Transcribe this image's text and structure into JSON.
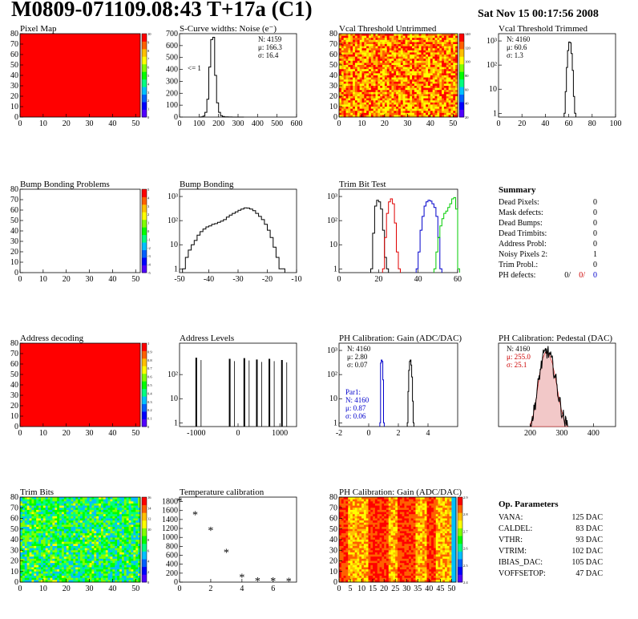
{
  "header": {
    "title": "M0809-071109.08:43 T+17a (C1)",
    "date": "Sat Nov 15 00:17:56 2008"
  },
  "colors": {
    "hist_line": "#000000",
    "trim_red": "#e00000",
    "trim_blue": "#0000cc",
    "trim_green": "#00cc00",
    "pixel_red": "#ff0000",
    "stats_red": "#cc0000",
    "stats_blue": "#0000cc"
  },
  "chart_data": [
    {
      "id": "pixel-map",
      "type": "heatmap",
      "title": "Pixel Map",
      "xlim": [
        0,
        52
      ],
      "ylim": [
        0,
        80
      ],
      "xticks": [
        "0",
        "10",
        "20",
        "30",
        "40",
        "50"
      ],
      "yticks": [
        "0",
        "10",
        "20",
        "30",
        "40",
        "50",
        "60",
        "70",
        "80"
      ],
      "palette": [
        "#5000ff",
        "#0000ff",
        "#0060ff",
        "#00c0ff",
        "#00ff80",
        "#00ff00",
        "#80ff00",
        "#ffff00",
        "#ffc000",
        "#ff6000",
        "#ff0000"
      ],
      "zticks": [
        "0",
        "1",
        "2",
        "3",
        "4",
        "5",
        "6",
        "7",
        "8",
        "9",
        "10"
      ],
      "fill": "uniform-max"
    },
    {
      "id": "scurve",
      "type": "line",
      "title": "S-Curve widths: Noise (e⁻)",
      "xlim": [
        0,
        600
      ],
      "ylim": [
        0,
        700
      ],
      "xticks": [
        "0",
        "100",
        "200",
        "300",
        "400",
        "500",
        "600"
      ],
      "yticks": [
        "0",
        "100",
        "200",
        "300",
        "400",
        "500",
        "600",
        "700"
      ],
      "annotation": "<= 1",
      "stats": {
        "n": "N: 4159",
        "mu": "μ: 166.3",
        "sigma": "σ: 16.4"
      },
      "x": [
        100,
        110,
        120,
        130,
        140,
        150,
        160,
        170,
        180,
        190,
        200,
        210,
        220,
        230,
        250,
        270,
        300
      ],
      "y": [
        0,
        2,
        8,
        40,
        150,
        420,
        650,
        670,
        350,
        120,
        40,
        12,
        5,
        2,
        1,
        0,
        0
      ]
    },
    {
      "id": "vcal-untrimmed",
      "type": "heatmap",
      "title": "Vcal Threshold Untrimmed",
      "xlim": [
        0,
        52
      ],
      "ylim": [
        0,
        80
      ],
      "xticks": [
        "0",
        "10",
        "20",
        "30",
        "40",
        "50"
      ],
      "yticks": [
        "0",
        "10",
        "20",
        "30",
        "40",
        "50",
        "60",
        "70",
        "80"
      ],
      "palette": [
        "#5000ff",
        "#0000ff",
        "#0060ff",
        "#00c0ff",
        "#00ff80",
        "#00ff00",
        "#80ff00",
        "#ffff00",
        "#ffc000",
        "#ff6000",
        "#ff0000"
      ],
      "zticks": [
        "20",
        "40",
        "60",
        "80",
        "100",
        "120",
        "140"
      ],
      "fill": "random-warm"
    },
    {
      "id": "vcal-trimmed",
      "type": "line",
      "title": "Vcal Threshold Trimmed",
      "log": true,
      "xlim": [
        0,
        100
      ],
      "ylim": [
        0.7,
        2000
      ],
      "xticks": [
        "0",
        "20",
        "40",
        "60",
        "80",
        "100"
      ],
      "yticks": [
        "1",
        "10",
        "10²",
        "10³"
      ],
      "stats": {
        "n": "N: 4160",
        "mu": "μ: 60.6",
        "sigma": "σ:  1.3"
      },
      "x": [
        56,
        57,
        58,
        59,
        60,
        61,
        62,
        63,
        64,
        65
      ],
      "y": [
        1,
        8,
        80,
        400,
        900,
        850,
        300,
        60,
        5,
        1
      ]
    },
    {
      "id": "bump-problems",
      "type": "heatmap",
      "title": "Bump Bonding Problems",
      "xlim": [
        0,
        52
      ],
      "ylim": [
        0,
        80
      ],
      "xticks": [
        "0",
        "10",
        "20",
        "30",
        "40",
        "50"
      ],
      "yticks": [
        "0",
        "10",
        "20",
        "30",
        "40",
        "50",
        "60",
        "70",
        "80"
      ],
      "palette": [
        "#5000ff",
        "#0000ff",
        "#0060ff",
        "#00c0ff",
        "#00ff80",
        "#00ff00",
        "#80ff00",
        "#ffff00",
        "#ffc000",
        "#ff6000",
        "#ff0000"
      ],
      "zticks": [
        "-5",
        "-4",
        "-3",
        "-2",
        "-1",
        "0",
        "1",
        "2",
        "3",
        "4",
        "5"
      ],
      "fill": "empty"
    },
    {
      "id": "bump-bonding",
      "type": "line",
      "title": "Bump Bonding",
      "log": true,
      "xlim": [
        -50,
        -10
      ],
      "ylim": [
        0.7,
        2000
      ],
      "xticks": [
        "-50",
        "-40",
        "-30",
        "-20",
        "-10"
      ],
      "yticks": [
        "1",
        "10",
        "10²",
        "10³"
      ],
      "x": [
        -49,
        -48,
        -47,
        -46,
        -45,
        -44,
        -43,
        -42,
        -41,
        -40,
        -39,
        -38,
        -37,
        -36,
        -35,
        -34,
        -33,
        -32,
        -31,
        -30,
        -29,
        -28,
        -27,
        -26,
        -25,
        -24,
        -23,
        -22,
        -21,
        -20,
        -19,
        -18,
        -17,
        -16,
        -15
      ],
      "y": [
        1,
        3,
        6,
        10,
        15,
        25,
        35,
        45,
        55,
        60,
        70,
        75,
        85,
        95,
        110,
        140,
        170,
        200,
        230,
        270,
        300,
        340,
        330,
        300,
        260,
        200,
        150,
        110,
        70,
        40,
        20,
        8,
        3,
        1,
        1
      ]
    },
    {
      "id": "trim-bit-test",
      "type": "line",
      "title": "Trim Bit Test",
      "log": true,
      "xlim": [
        0,
        60
      ],
      "ylim": [
        0.7,
        2000
      ],
      "xticks": [
        "0",
        "20",
        "40",
        "60"
      ],
      "yticks": [
        "1",
        "10",
        "10²",
        "10³"
      ],
      "series": [
        {
          "color": "#000000",
          "x": [
            16,
            17,
            18,
            19,
            20,
            21,
            22,
            23,
            24
          ],
          "y": [
            1,
            30,
            400,
            700,
            600,
            300,
            40,
            3,
            1
          ]
        },
        {
          "color": "#e00000",
          "x": [
            22,
            23,
            24,
            25,
            26,
            27,
            28,
            29,
            30
          ],
          "y": [
            1,
            20,
            200,
            600,
            800,
            500,
            80,
            5,
            1
          ]
        },
        {
          "color": "#0000cc",
          "x": [
            39,
            40,
            41,
            42,
            43,
            44,
            45,
            46,
            47,
            48,
            49,
            50,
            51
          ],
          "y": [
            1,
            5,
            40,
            150,
            400,
            600,
            700,
            650,
            500,
            350,
            150,
            20,
            1
          ]
        },
        {
          "color": "#00cc00",
          "x": [
            48,
            49,
            50,
            51,
            52,
            53,
            54,
            55,
            56,
            57,
            58,
            59,
            60
          ],
          "y": [
            1,
            5,
            20,
            60,
            120,
            200,
            250,
            350,
            500,
            800,
            900,
            300,
            1
          ]
        }
      ]
    },
    {
      "id": "address-decoding",
      "type": "heatmap",
      "title": "Address decoding",
      "xlim": [
        0,
        52
      ],
      "ylim": [
        0,
        80
      ],
      "xticks": [
        "0",
        "10",
        "20",
        "30",
        "40",
        "50"
      ],
      "yticks": [
        "0",
        "10",
        "20",
        "30",
        "40",
        "50",
        "60",
        "70",
        "80"
      ],
      "palette": [
        "#5000ff",
        "#0000ff",
        "#0060ff",
        "#00c0ff",
        "#00ff80",
        "#00ff00",
        "#80ff00",
        "#ffff00",
        "#ffc000",
        "#ff6000",
        "#ff0000"
      ],
      "zticks": [
        "0",
        "0.1",
        "0.2",
        "0.3",
        "0.4",
        "0.5",
        "0.6",
        "0.7",
        "0.8",
        "0.9",
        "1"
      ],
      "fill": "uniform-max"
    },
    {
      "id": "address-levels",
      "type": "bar",
      "title": "Address Levels",
      "log": true,
      "xlim": [
        -1400,
        1400
      ],
      "ylim": [
        0.7,
        2000
      ],
      "xticks": [
        "-1000",
        "0",
        "1000"
      ],
      "yticks": [
        "1",
        "10",
        "10²"
      ],
      "x": [
        -1000,
        -200,
        150,
        450,
        750,
        1050
      ],
      "y": [
        500,
        450,
        480,
        420,
        450,
        400
      ]
    },
    {
      "id": "ph-gain",
      "type": "line",
      "title": "PH Calibration: Gain (ADC/DAC)",
      "log": true,
      "xlim": [
        -2,
        6
      ],
      "ylim": [
        0.7,
        2000
      ],
      "xticks": [
        "-2",
        "0",
        "2",
        "4"
      ],
      "yticks": [
        "1",
        "10",
        "10²",
        "10³"
      ],
      "stats": {
        "n": "N: 4160",
        "mu": "μ: 2.80",
        "sigma": "σ: 0.07"
      },
      "stats2": {
        "label": "Par1:",
        "n": "N: 4160",
        "mu": "μ: 0.87",
        "sigma": "σ: 0.06"
      },
      "series": [
        {
          "color": "#000000",
          "x": [
            2.6,
            2.65,
            2.7,
            2.75,
            2.8,
            2.85,
            2.9,
            2.95,
            3.0
          ],
          "y": [
            1,
            20,
            150,
            350,
            400,
            250,
            80,
            8,
            1
          ]
        },
        {
          "color": "#0000cc",
          "x": [
            0.75,
            0.8,
            0.85,
            0.9,
            0.95,
            1.0
          ],
          "y": [
            1,
            300,
            400,
            350,
            60,
            1
          ]
        }
      ]
    },
    {
      "id": "ph-pedestal",
      "type": "line",
      "title": "PH Calibration: Pedestal (DAC)",
      "xlim": [
        100,
        470
      ],
      "ylim": [
        0,
        55
      ],
      "xticks": [
        "200",
        "300",
        "400"
      ],
      "yticks": [],
      "stats": {
        "n": "N: 4160",
        "mu": "μ: 255.0",
        "sigma": "σ: 25.1"
      },
      "x": [
        200,
        210,
        220,
        230,
        240,
        250,
        260,
        270,
        280,
        290,
        300,
        310,
        320
      ],
      "y": [
        1,
        8,
        20,
        35,
        45,
        50,
        48,
        42,
        32,
        20,
        10,
        3,
        0
      ]
    },
    {
      "id": "trim-bits",
      "type": "heatmap",
      "title": "Trim Bits",
      "xlim": [
        0,
        52
      ],
      "ylim": [
        0,
        80
      ],
      "xticks": [
        "0",
        "10",
        "20",
        "30",
        "40",
        "50"
      ],
      "yticks": [
        "0",
        "10",
        "20",
        "30",
        "40",
        "50",
        "60",
        "70",
        "80"
      ],
      "palette": [
        "#5000ff",
        "#0000ff",
        "#0060ff",
        "#00c0ff",
        "#00ff80",
        "#00ff00",
        "#80ff00",
        "#ffff00",
        "#ffc000",
        "#ff6000",
        "#ff0000"
      ],
      "zticks": [
        "0",
        "2",
        "4",
        "6",
        "8",
        "10",
        "12",
        "14",
        "16"
      ],
      "fill": "random-green"
    },
    {
      "id": "temp-calibration",
      "type": "scatter",
      "title": "Temperature calibration",
      "xlim": [
        0,
        7.5
      ],
      "ylim": [
        0,
        1900
      ],
      "xticks": [
        "0",
        "2",
        "4",
        "6"
      ],
      "yticks": [
        "0",
        "200",
        "400",
        "600",
        "800",
        "1000",
        "1200",
        "1400",
        "1600",
        "1800"
      ],
      "x": [
        0,
        1,
        2,
        3,
        4,
        5,
        6,
        7
      ],
      "y": [
        1800,
        1500,
        1150,
        650,
        100,
        20,
        15,
        10
      ]
    },
    {
      "id": "ph-gain-map",
      "type": "heatmap",
      "title": "PH Calibration: Gain (ADC/DAC)",
      "xlim": [
        0,
        52
      ],
      "ylim": [
        0,
        80
      ],
      "xticks": [
        "0",
        "5",
        "10",
        "15",
        "20",
        "25",
        "30",
        "35",
        "40",
        "45",
        "50"
      ],
      "yticks": [
        "0",
        "10",
        "20",
        "30",
        "40",
        "50",
        "60",
        "70",
        "80"
      ],
      "palette": [
        "#5000ff",
        "#0000ff",
        "#0060ff",
        "#00c0ff",
        "#00ff80",
        "#00ff00",
        "#80ff00",
        "#ffff00",
        "#ffc000",
        "#ff6000",
        "#ff0000"
      ],
      "zticks": [
        "2.4",
        "2.5",
        "2.6",
        "2.7",
        "2.8",
        "2.9"
      ],
      "fill": "random-red"
    }
  ],
  "summary": {
    "title": "Summary",
    "rows": [
      {
        "label": "Dead Pixels:",
        "value": "0"
      },
      {
        "label": "Mask defects:",
        "value": "0"
      },
      {
        "label": "Dead Bumps:",
        "value": "0"
      },
      {
        "label": "Dead Trimbits:",
        "value": "0"
      },
      {
        "label": "Address Probl:",
        "value": "0"
      },
      {
        "label": "Noisy Pixels 2:",
        "value": "1"
      },
      {
        "label": "Trim Probl.:",
        "value": "0"
      }
    ],
    "ph": {
      "label": "PH defects:",
      "v1": "0/",
      "v2": "0/",
      "v3": "0"
    }
  },
  "op_params": {
    "title": "Op. Parameters",
    "rows": [
      {
        "label": "VANA:",
        "value": "125 DAC"
      },
      {
        "label": "CALDEL:",
        "value": "83 DAC"
      },
      {
        "label": "VTHR:",
        "value": "93 DAC"
      },
      {
        "label": "VTRIM:",
        "value": "102 DAC"
      },
      {
        "label": "IBIAS_DAC:",
        "value": "105 DAC"
      },
      {
        "label": "VOFFSETOP:",
        "value": "47 DAC"
      }
    ]
  }
}
